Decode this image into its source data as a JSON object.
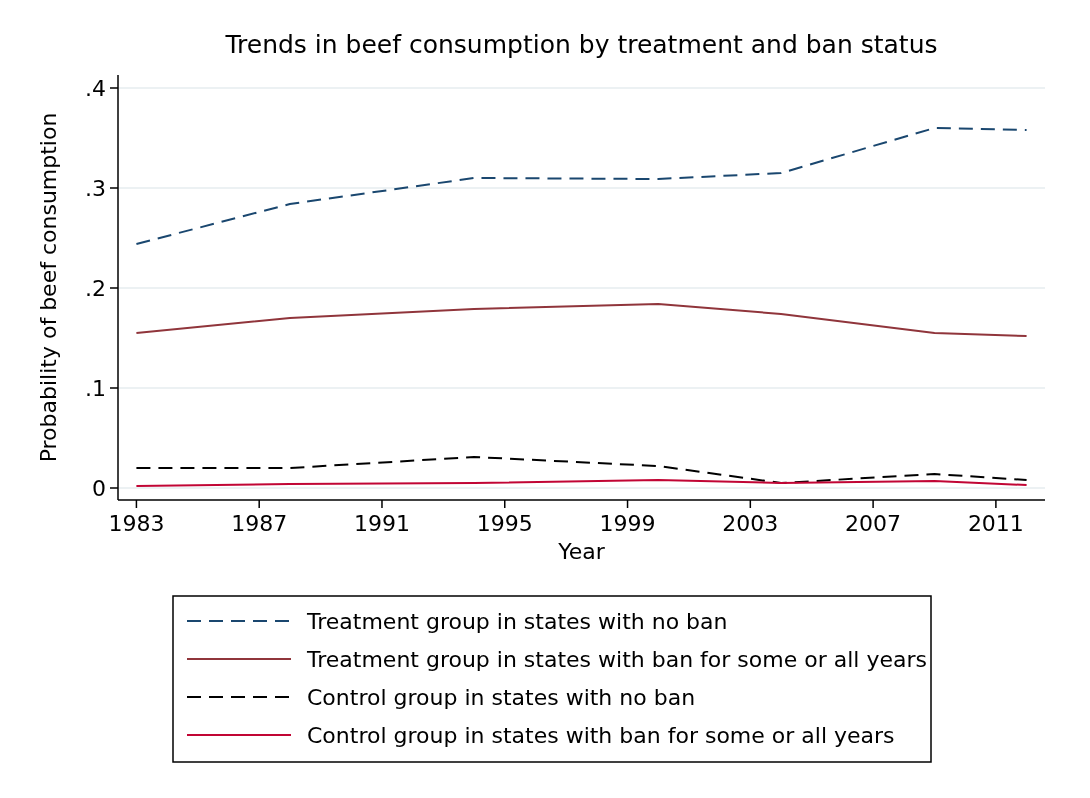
{
  "chart_data": {
    "type": "line",
    "title": "Trends in beef consumption by treatment and ban status",
    "xlabel": "Year",
    "ylabel": "Probability of beef consumption",
    "x": [
      1983,
      1988,
      1994,
      2000,
      2004,
      2009,
      2012
    ],
    "xlim": [
      1982.4,
      2012.6
    ],
    "xticks": [
      1983,
      1987,
      1991,
      1995,
      1999,
      2003,
      2007,
      2011
    ],
    "ylim": [
      -0.012,
      0.413
    ],
    "yticks": [
      {
        "value": 0,
        "label": "0"
      },
      {
        "value": 0.1,
        "label": ".1"
      },
      {
        "value": 0.2,
        "label": ".2"
      },
      {
        "value": 0.3,
        "label": ".3"
      },
      {
        "value": 0.4,
        "label": ".4"
      }
    ],
    "grid": "y",
    "legend": "bottom",
    "marker": "none",
    "series": [
      {
        "name": "Treatment group in states with no ban",
        "color": "#1a476f",
        "line_style": "dashed",
        "values": [
          0.244,
          0.284,
          0.31,
          0.309,
          0.315,
          0.36,
          0.358
        ]
      },
      {
        "name": "Treatment group in states with ban for some or all years",
        "color": "#90353b",
        "line_style": "solid",
        "values": [
          0.155,
          0.17,
          0.179,
          0.184,
          0.174,
          0.155,
          0.152
        ]
      },
      {
        "name": "Control group in states with no ban",
        "color": "#000000",
        "line_style": "dashed",
        "values": [
          0.02,
          0.02,
          0.031,
          0.022,
          0.005,
          0.014,
          0.008
        ]
      },
      {
        "name": "Control group in states with ban for some or all years",
        "color": "#c10534",
        "line_style": "solid",
        "values": [
          0.002,
          0.004,
          0.005,
          0.008,
          0.005,
          0.007,
          0.003
        ]
      }
    ]
  }
}
